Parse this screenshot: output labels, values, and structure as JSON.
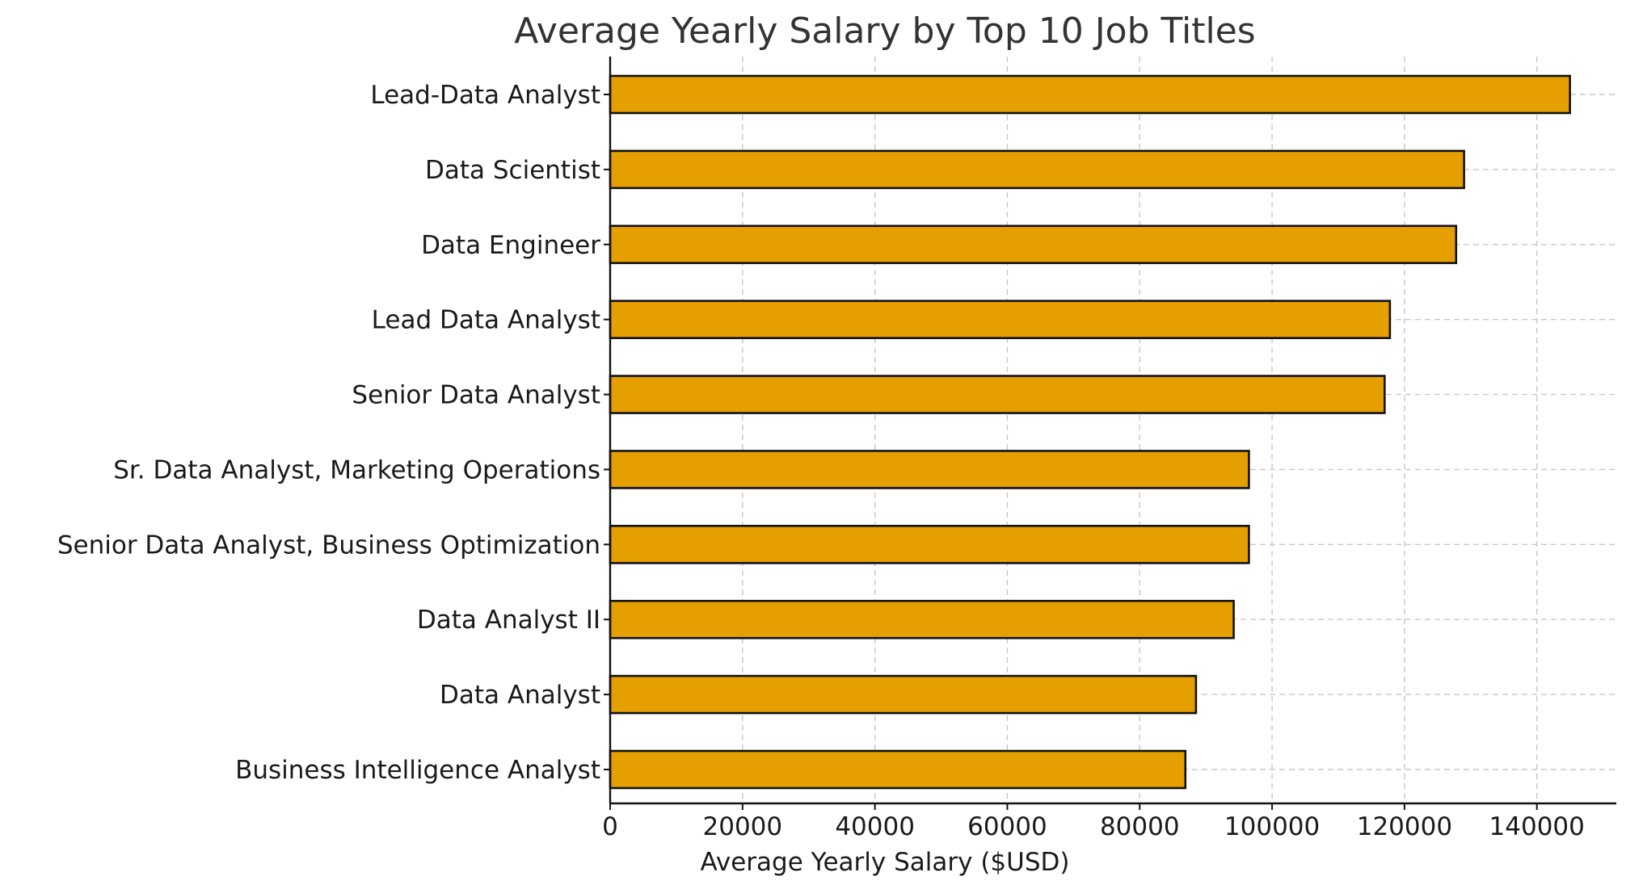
{
  "chart_data": {
    "type": "bar",
    "orientation": "horizontal",
    "title": "Average Yearly Salary by Top 10 Job Titles",
    "xlabel": "Average Yearly Salary ($USD)",
    "ylabel": "",
    "categories": [
      "Lead-Data Analyst",
      "Data Scientist",
      "Data Engineer",
      "Lead Data Analyst",
      "Senior Data Analyst",
      "Sr. Data Analyst, Marketing Operations",
      "Senior Data Analyst, Business Optimization",
      "Data Analyst II",
      "Data Analyst",
      "Business Intelligence Analyst"
    ],
    "values": [
      145000,
      129000,
      127800,
      117800,
      117000,
      96500,
      96500,
      94200,
      88500,
      86900
    ],
    "xlim": [
      0,
      152000
    ],
    "xticks": [
      0,
      20000,
      40000,
      60000,
      80000,
      100000,
      120000,
      140000
    ],
    "xtick_labels": [
      "0",
      "20000",
      "40000",
      "60000",
      "80000",
      "100000",
      "120000",
      "140000"
    ],
    "grid": true,
    "colors": {
      "bar": "#E69F00",
      "edge": "#111111",
      "grid": "#c8c8c8"
    }
  }
}
